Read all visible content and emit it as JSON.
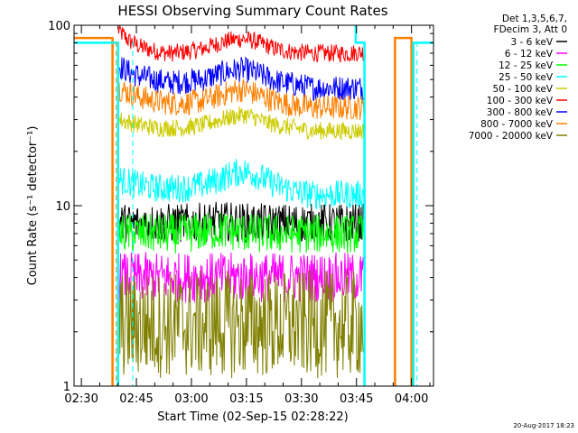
{
  "chart_data": {
    "type": "line",
    "title": "HESSI Observing Summary Count Rates",
    "xlabel": "Start Time (02-Sep-15 02:28:22)",
    "ylabel": "Count Rate (s⁻¹ detector⁻¹)",
    "footer": "20-Aug-2017 18:23",
    "x_unit": "minutes after 02:28",
    "xlim": [
      0,
      98
    ],
    "ylim": [
      1,
      100
    ],
    "yscale": "log",
    "x_ticks": [
      {
        "x": 2,
        "label": "02:30"
      },
      {
        "x": 17,
        "label": "02:45"
      },
      {
        "x": 32,
        "label": "03:00"
      },
      {
        "x": 47,
        "label": "03:15"
      },
      {
        "x": 62,
        "label": "03:30"
      },
      {
        "x": 77,
        "label": "03:45"
      },
      {
        "x": 92,
        "label": "04:00"
      }
    ],
    "y_ticks": [
      {
        "y": 1,
        "label": "1"
      },
      {
        "y": 10,
        "label": "10"
      },
      {
        "y": 100,
        "label": "100"
      }
    ],
    "legend": {
      "header": [
        "Det 1,3,5,6,7,",
        "FDecim 3, Att 0"
      ],
      "entries": [
        {
          "label": "3 - 6 keV",
          "color": "#000000"
        },
        {
          "label": "6 - 12 keV",
          "color": "#ff00ff"
        },
        {
          "label": "12 - 25 keV",
          "color": "#00ff00"
        },
        {
          "label": "25 - 50 keV",
          "color": "#00ffff"
        },
        {
          "label": "50 - 100 keV",
          "color": "#cccc00"
        },
        {
          "label": "100 - 300 keV",
          "color": "#ff0000"
        },
        {
          "label": "300 - 800 keV",
          "color": "#0000ff"
        },
        {
          "label": "800 - 7000 keV",
          "color": "#ff8000"
        },
        {
          "label": "7000 - 20000 keV",
          "color": "#808000"
        }
      ]
    },
    "series": [
      {
        "name": "100 - 300 keV",
        "color": "#ff0000",
        "x": [
          12,
          13,
          15,
          18,
          22,
          26,
          30,
          35,
          40,
          43,
          46,
          49,
          52,
          55,
          60,
          65,
          70,
          75,
          79
        ],
        "y": [
          95,
          90,
          82,
          76,
          72,
          70,
          71,
          74,
          80,
          83,
          84,
          82,
          78,
          74,
          71,
          70,
          70,
          70,
          71
        ],
        "noise": 0.05
      },
      {
        "name": "300 - 800 keV",
        "color": "#0000ff",
        "x": [
          12,
          15,
          18,
          22,
          26,
          30,
          35,
          40,
          43,
          46,
          49,
          52,
          55,
          60,
          65,
          70,
          75,
          79
        ],
        "y": [
          60,
          55,
          52,
          50,
          48,
          49,
          50,
          54,
          56,
          57,
          55,
          52,
          49,
          47,
          45,
          45,
          45,
          45
        ],
        "noise": 0.07
      },
      {
        "name": "800 - 7000 keV",
        "color": "#ff8000",
        "x": [
          12,
          15,
          18,
          22,
          26,
          30,
          35,
          40,
          43,
          46,
          49,
          52,
          55,
          60,
          65,
          70,
          75,
          79
        ],
        "y": [
          45,
          42,
          40,
          38,
          37,
          37,
          38,
          41,
          43,
          44,
          42,
          40,
          38,
          36,
          35,
          35,
          35,
          35
        ],
        "noise": 0.07
      },
      {
        "name": "50 - 100 keV",
        "color": "#cccc00",
        "x": [
          12,
          15,
          18,
          22,
          26,
          30,
          35,
          40,
          43,
          46,
          49,
          52,
          55,
          60,
          65,
          70,
          75,
          79
        ],
        "y": [
          30,
          29,
          28,
          27,
          27,
          27,
          28,
          30,
          31,
          32,
          31,
          29,
          28,
          27,
          26,
          26,
          26,
          26
        ],
        "noise": 0.05
      },
      {
        "name": "25 - 50 keV",
        "color": "#00ffff",
        "x": [
          12,
          15,
          18,
          22,
          26,
          30,
          35,
          40,
          43,
          46,
          49,
          52,
          55,
          60,
          65,
          70,
          75,
          79
        ],
        "y": [
          14,
          13.5,
          13,
          12.5,
          12.5,
          12.5,
          13,
          14,
          15,
          15.5,
          15,
          14,
          13,
          12,
          11.5,
          11.5,
          11.5,
          11.5
        ],
        "noise": 0.08
      },
      {
        "name": "3 - 6 keV",
        "color": "#000000",
        "x": [
          12,
          20,
          30,
          40,
          50,
          60,
          70,
          79
        ],
        "y": [
          8,
          8,
          8,
          8.2,
          8,
          8,
          8,
          8
        ],
        "noise": 0.11
      },
      {
        "name": "12 - 25 keV",
        "color": "#00ff00",
        "x": [
          12,
          20,
          30,
          40,
          50,
          60,
          70,
          79
        ],
        "y": [
          7,
          7,
          7,
          7.3,
          7,
          7,
          7,
          7
        ],
        "noise": 0.11
      },
      {
        "name": "6 - 12 keV",
        "color": "#ff00ff",
        "x": [
          12,
          20,
          30,
          40,
          50,
          60,
          70,
          79
        ],
        "y": [
          4,
          4,
          4,
          4,
          4,
          4,
          4,
          4
        ],
        "noise": 0.14
      },
      {
        "name": "7000 - 20000 keV",
        "color": "#808000",
        "x": [
          12,
          20,
          30,
          40,
          50,
          60,
          70,
          79
        ],
        "y": [
          2.2,
          2.2,
          2.2,
          2.2,
          2.2,
          2.2,
          2.2,
          2.2
        ],
        "noise": 0.3
      }
    ],
    "step_lines": [
      {
        "color": "#ff8000",
        "x": [
          0,
          10.5,
          10.5
        ],
        "y": [
          85,
          85,
          1
        ]
      },
      {
        "color": "#00ffff",
        "x": [
          0,
          12,
          12
        ],
        "y": [
          80,
          80,
          1
        ]
      },
      {
        "color": "#00ffff",
        "x": [
          76.8,
          76.8,
          79.2,
          79.2
        ],
        "y": [
          100,
          80,
          80,
          1
        ]
      },
      {
        "color": "#ff8000",
        "x": [
          87.5,
          87.5,
          92,
          92
        ],
        "y": [
          1,
          85,
          85,
          1
        ]
      },
      {
        "color": "#00ffff",
        "x": [
          92.5,
          92.5,
          98
        ],
        "y": [
          1,
          80,
          80
        ]
      }
    ],
    "vertical_dashed": [
      {
        "color": "#ff8000",
        "x": 11.5
      },
      {
        "color": "#00ffff",
        "x": 16
      },
      {
        "color": "#00ffff",
        "x": 93.5
      }
    ]
  }
}
